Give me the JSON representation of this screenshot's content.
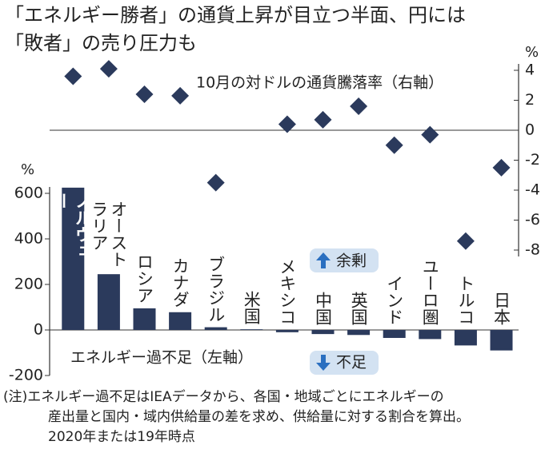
{
  "title_lines": [
    "「エネルギー勝者」の通貨上昇が目立つ半面、円には",
    "「敗者」の売り圧力も"
  ],
  "chart_data": {
    "type": "bar",
    "categories": [
      "ノルウェー",
      "オーストラリア",
      "ロシア",
      "カナダ",
      "ブラジル",
      "米国",
      "メキシコ",
      "中国",
      "英国",
      "インド",
      "ユーロ圏",
      "トルコ",
      "日本"
    ],
    "series": [
      {
        "name": "エネルギー過不足（左軸）",
        "type": "bar",
        "color": "#2b3a5c",
        "values": [
          625,
          245,
          95,
          78,
          12,
          3,
          -10,
          -18,
          -22,
          -35,
          -40,
          -68,
          -90
        ]
      },
      {
        "name": "10月の対ドルの通貨騰落率（右軸）",
        "type": "scatter",
        "axis": "y2",
        "color": "#2b3a5c",
        "values": [
          3.6,
          4.1,
          2.4,
          2.3,
          -3.5,
          null,
          0.4,
          0.7,
          1.6,
          -1.0,
          -0.3,
          -7.4,
          -2.5
        ]
      }
    ],
    "ylim": [
      -200,
      600
    ],
    "yticks": [
      -200,
      0,
      200,
      400,
      600
    ],
    "y_unit": "%",
    "y2lim": [
      -8,
      4
    ],
    "y2ticks": [
      -8,
      -6,
      -4,
      -2,
      0,
      2,
      4
    ],
    "y2_unit": "%",
    "annotations": [
      "余剰",
      "不足"
    ]
  },
  "note_lines": [
    "(注)エネルギー過不足はIEAデータから、各国・地域ごとにエネルギーの",
    "産出量と国内・域内供給量の差を求め、供給量に対する割合を算出。",
    "2020年または19年時点"
  ]
}
